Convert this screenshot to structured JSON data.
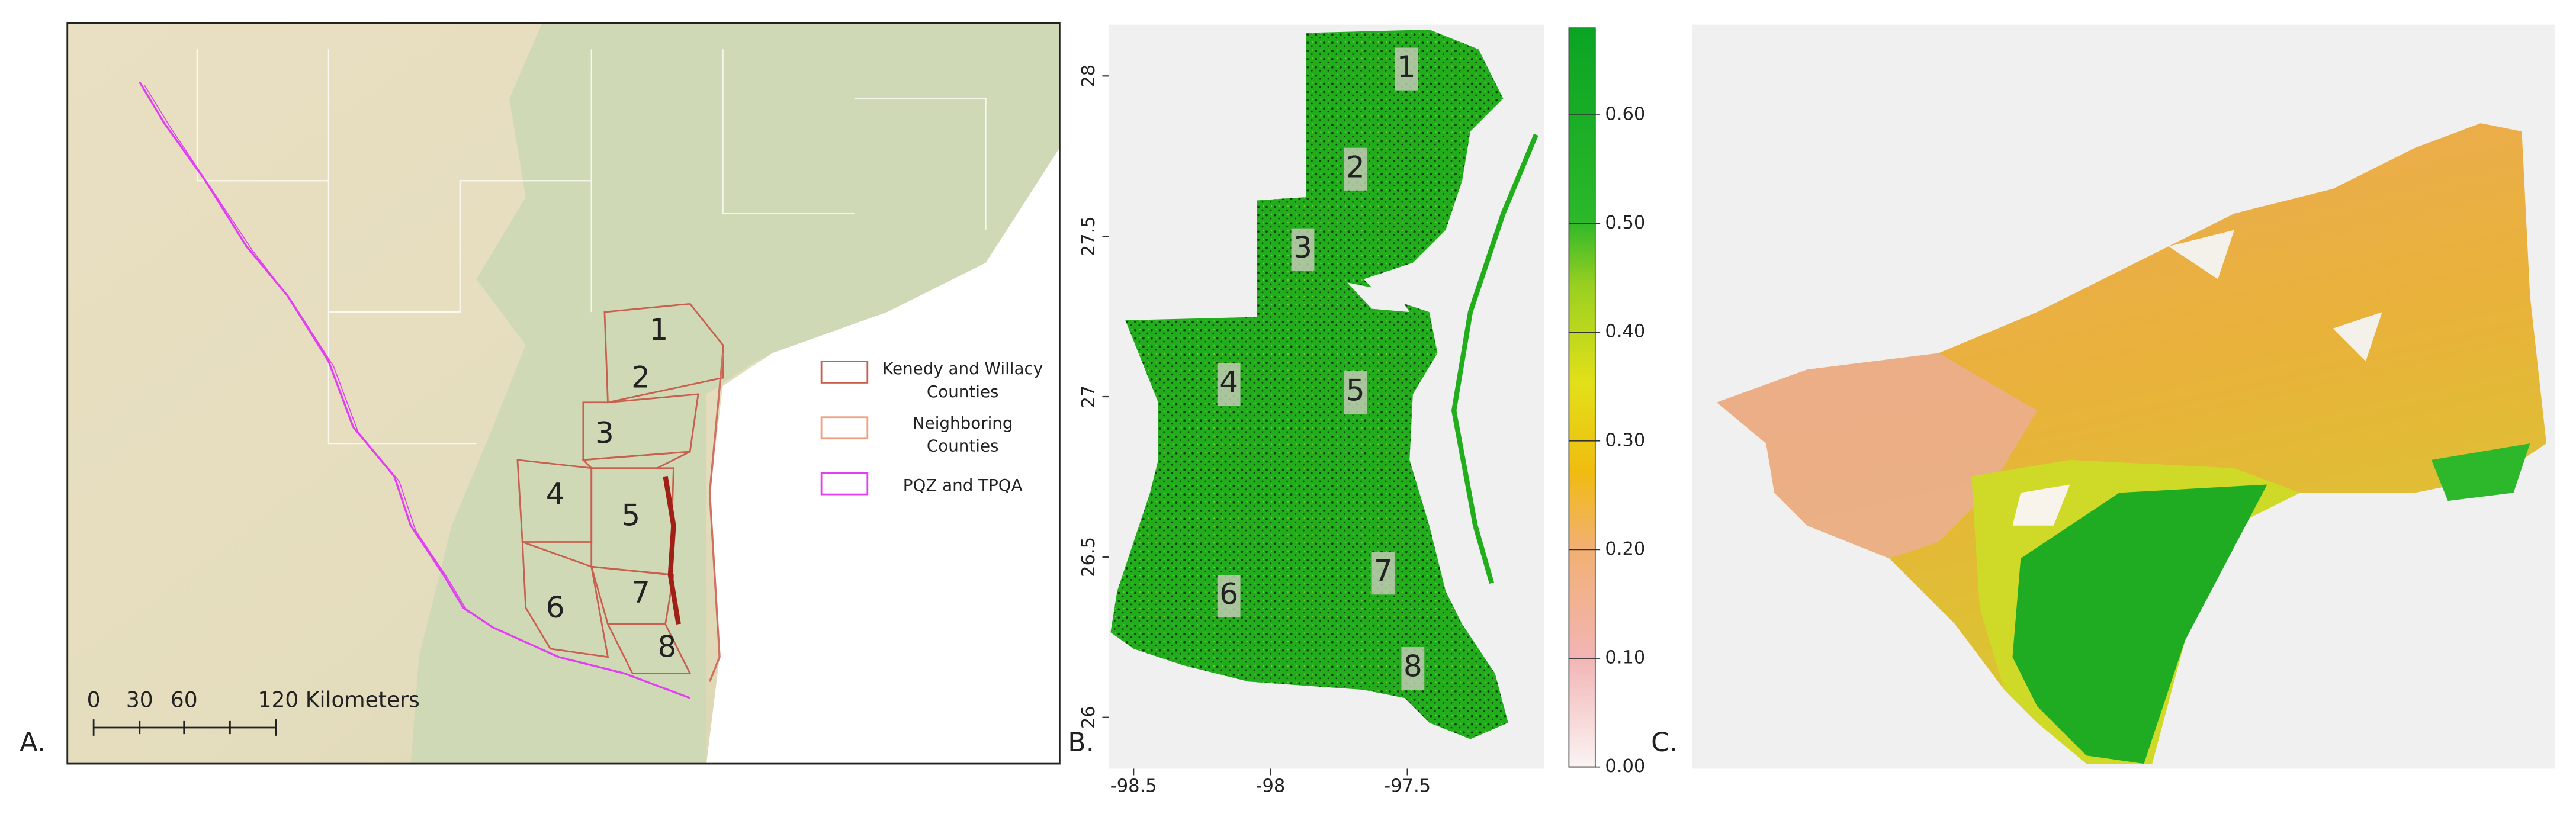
{
  "panel_labels": [
    "A.",
    "B.",
    "C."
  ],
  "panel_a": {
    "region_labels": [
      "1",
      "2",
      "3",
      "4",
      "5",
      "6",
      "7",
      "8"
    ],
    "legend": [
      {
        "lines": [
          "Kenedy and Willacy",
          "Counties"
        ]
      },
      {
        "lines": [
          "Neighboring",
          "Counties"
        ]
      },
      {
        "lines": [
          "PQZ and TPQA"
        ]
      }
    ],
    "scale_bar": [
      "0",
      "30",
      "60",
      "120 Kilometers"
    ]
  },
  "panel_b": {
    "region_labels": [
      "1",
      "2",
      "3",
      "4",
      "5",
      "6",
      "7",
      "8"
    ],
    "xlim": [
      -98.59,
      -97.0
    ],
    "xticks": [
      -98.5,
      -98,
      -97.5
    ],
    "ylim": [
      25.84,
      28.16
    ],
    "yticks": [
      28,
      27.5,
      27,
      26.5,
      26
    ]
  },
  "colorbar": {
    "ylim": [
      0,
      0.68
    ],
    "yticks": [
      {
        "value": 0,
        "label": "0.00"
      },
      {
        "value": 0.1,
        "label": "0.10"
      },
      {
        "value": 0.2,
        "label": "0.20"
      },
      {
        "value": 0.3,
        "label": "0.30"
      },
      {
        "value": 0.4,
        "label": "0.40"
      },
      {
        "value": 0.5,
        "label": "0.50"
      },
      {
        "value": 0.6,
        "label": "0.60"
      }
    ]
  }
}
